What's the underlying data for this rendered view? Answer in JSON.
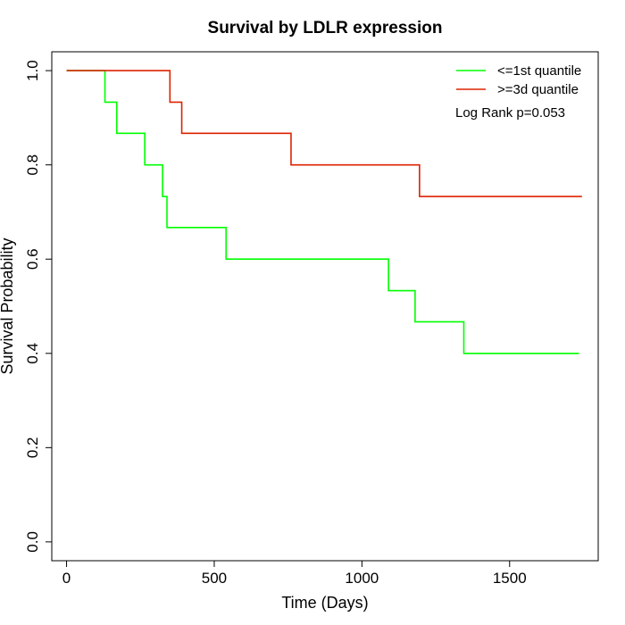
{
  "chart_data": {
    "type": "line",
    "step": true,
    "title": "Survival by LDLR expression",
    "xlabel": "Time (Days)",
    "ylabel": "Survival Probability",
    "xlim": [
      -50,
      1800
    ],
    "ylim": [
      -0.04,
      1.04
    ],
    "xticks": [
      0,
      500,
      1000,
      1500
    ],
    "yticks": [
      0.0,
      0.2,
      0.4,
      0.6,
      0.8,
      1.0
    ],
    "ytick_labels": [
      "0.0",
      "0.2",
      "0.4",
      "0.6",
      "0.8",
      "1.0"
    ],
    "legend_position": "top-right",
    "annotation": "Log Rank p=0.053",
    "series": [
      {
        "name": "<=1st quantile",
        "color": "#00ff00",
        "x": [
          0,
          130,
          170,
          265,
          325,
          340,
          540,
          1090,
          1180,
          1345,
          1735
        ],
        "y": [
          1.0,
          0.933,
          0.867,
          0.8,
          0.733,
          0.667,
          0.6,
          0.533,
          0.467,
          0.4,
          0.4
        ]
      },
      {
        "name": ">=3d quantile",
        "color": "#dd2200",
        "x": [
          0,
          350,
          390,
          760,
          1195,
          1745
        ],
        "y": [
          1.0,
          0.933,
          0.867,
          0.8,
          0.733,
          0.733
        ]
      }
    ]
  }
}
